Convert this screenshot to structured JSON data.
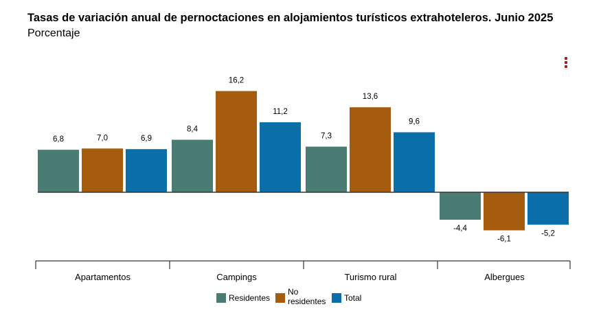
{
  "header": {
    "title": "Tasas de variación anual de pernoctaciones en alojamientos turísticos extrahoteleros. Junio 2025",
    "subtitle": "Porcentaje"
  },
  "menu": {
    "icon": "vertical-dots-icon",
    "color": "#a61d24"
  },
  "legend": {
    "items": [
      {
        "label_lines": [
          "Residentes"
        ],
        "color": "#4a7c73"
      },
      {
        "label_lines": [
          "No",
          "residentes"
        ],
        "color": "#a65c0e"
      },
      {
        "label_lines": [
          "Total"
        ],
        "color": "#0a6fa8"
      }
    ]
  },
  "chart_data": {
    "type": "bar",
    "title": "Tasas de variación anual de pernoctaciones en alojamientos turísticos extrahoteleros. Junio 2025",
    "subtitle": "Porcentaje",
    "categories": [
      "Apartamentos",
      "Campings",
      "Turismo rural",
      "Albergues"
    ],
    "series": [
      {
        "name": "Residentes",
        "color": "#4a7c73",
        "values": [
          6.8,
          8.4,
          7.3,
          -4.4
        ],
        "labels": [
          "6,8",
          "8,4",
          "7,3",
          "-4,4"
        ]
      },
      {
        "name": "No residentes",
        "color": "#a65c0e",
        "values": [
          7.0,
          16.2,
          13.6,
          -6.1
        ],
        "labels": [
          "7,0",
          "16,2",
          "13,6",
          "-6,1"
        ]
      },
      {
        "name": "Total",
        "color": "#0a6fa8",
        "values": [
          6.9,
          11.2,
          9.6,
          -5.2
        ],
        "labels": [
          "6,9",
          "11,2",
          "9,6",
          "-5,2"
        ]
      }
    ],
    "ylim": [
      -8,
      18
    ],
    "grid": false,
    "legend_position": "bottom"
  }
}
